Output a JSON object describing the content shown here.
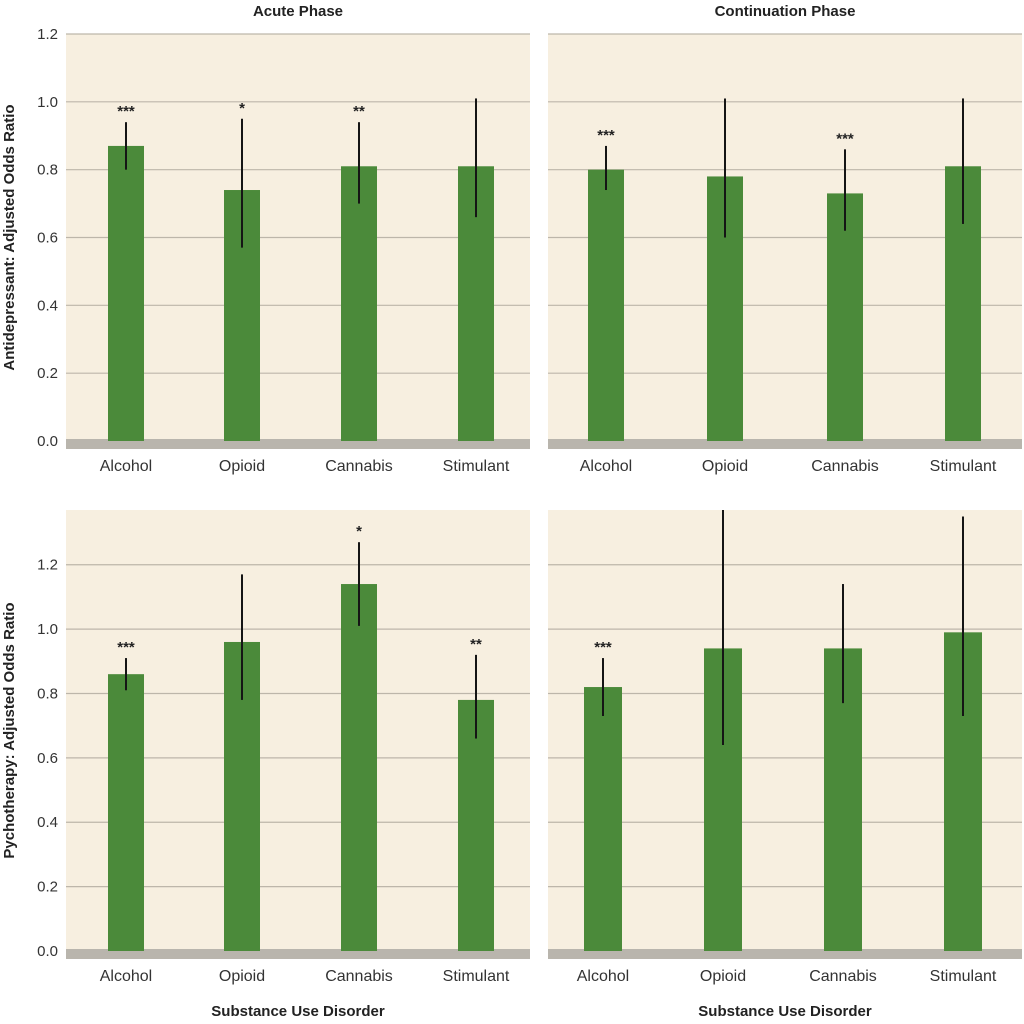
{
  "chart_data": [
    {
      "type": "bar",
      "panel": "top-left",
      "title": "Acute Phase",
      "ylabel": "Antidepressant: Adjusted Odds Ratio",
      "xlabel": "",
      "categories": [
        "Alcohol",
        "Opioid",
        "Cannabis",
        "Stimulant"
      ],
      "values": [
        0.87,
        0.74,
        0.81,
        0.81
      ],
      "ci_low": [
        0.8,
        0.57,
        0.7,
        0.66
      ],
      "ci_high": [
        0.94,
        0.95,
        0.94,
        1.01
      ],
      "significance": [
        "***",
        "*",
        "**",
        ""
      ],
      "ylim": [
        0,
        1.2
      ],
      "yticks": [
        0.0,
        0.2,
        0.4,
        0.6,
        0.8,
        1.0,
        1.2
      ],
      "ytick_labels": [
        "0.0",
        "0.2",
        "0.4",
        "0.6",
        "0.8",
        "1.0",
        "1.2"
      ]
    },
    {
      "type": "bar",
      "panel": "top-right",
      "title": "Continuation Phase",
      "ylabel": "",
      "xlabel": "",
      "categories": [
        "Alcohol",
        "Opioid",
        "Cannabis",
        "Stimulant"
      ],
      "values": [
        0.8,
        0.78,
        0.73,
        0.81
      ],
      "ci_low": [
        0.74,
        0.6,
        0.62,
        0.64
      ],
      "ci_high": [
        0.87,
        1.01,
        0.86,
        1.01
      ],
      "significance": [
        "***",
        "",
        "***",
        ""
      ],
      "ylim": [
        0,
        1.2
      ],
      "yticks": [
        0.0,
        0.2,
        0.4,
        0.6,
        0.8,
        1.0,
        1.2
      ],
      "ytick_labels": []
    },
    {
      "type": "bar",
      "panel": "bottom-left",
      "title": "",
      "ylabel": "Pychotherapy: Adjusted Odds Ratio",
      "xlabel": "Substance Use Disorder",
      "categories": [
        "Alcohol",
        "Opioid",
        "Cannabis",
        "Stimulant"
      ],
      "values": [
        0.86,
        0.96,
        1.14,
        0.78
      ],
      "ci_low": [
        0.81,
        0.78,
        1.01,
        0.66
      ],
      "ci_high": [
        0.91,
        1.17,
        1.27,
        0.92
      ],
      "significance": [
        "***",
        "",
        "*",
        "**"
      ],
      "ylim": [
        0,
        1.37
      ],
      "yticks": [
        0.0,
        0.2,
        0.4,
        0.6,
        0.8,
        1.0,
        1.2
      ],
      "ytick_labels": [
        "0.0",
        "0.2",
        "0.4",
        "0.6",
        "0.8",
        "1.0",
        "1.2"
      ]
    },
    {
      "type": "bar",
      "panel": "bottom-right",
      "title": "",
      "ylabel": "",
      "xlabel": "Substance Use Disorder",
      "categories": [
        "Alcohol",
        "Opioid",
        "Cannabis",
        "Stimulant"
      ],
      "values": [
        0.82,
        0.94,
        0.94,
        0.99
      ],
      "ci_low": [
        0.73,
        0.64,
        0.77,
        0.73
      ],
      "ci_high": [
        0.91,
        1.37,
        1.14,
        1.35
      ],
      "significance": [
        "***",
        "",
        "",
        ""
      ],
      "ylim": [
        0,
        1.37
      ],
      "yticks": [
        0.0,
        0.2,
        0.4,
        0.6,
        0.8,
        1.0,
        1.2
      ],
      "ytick_labels": []
    }
  ]
}
